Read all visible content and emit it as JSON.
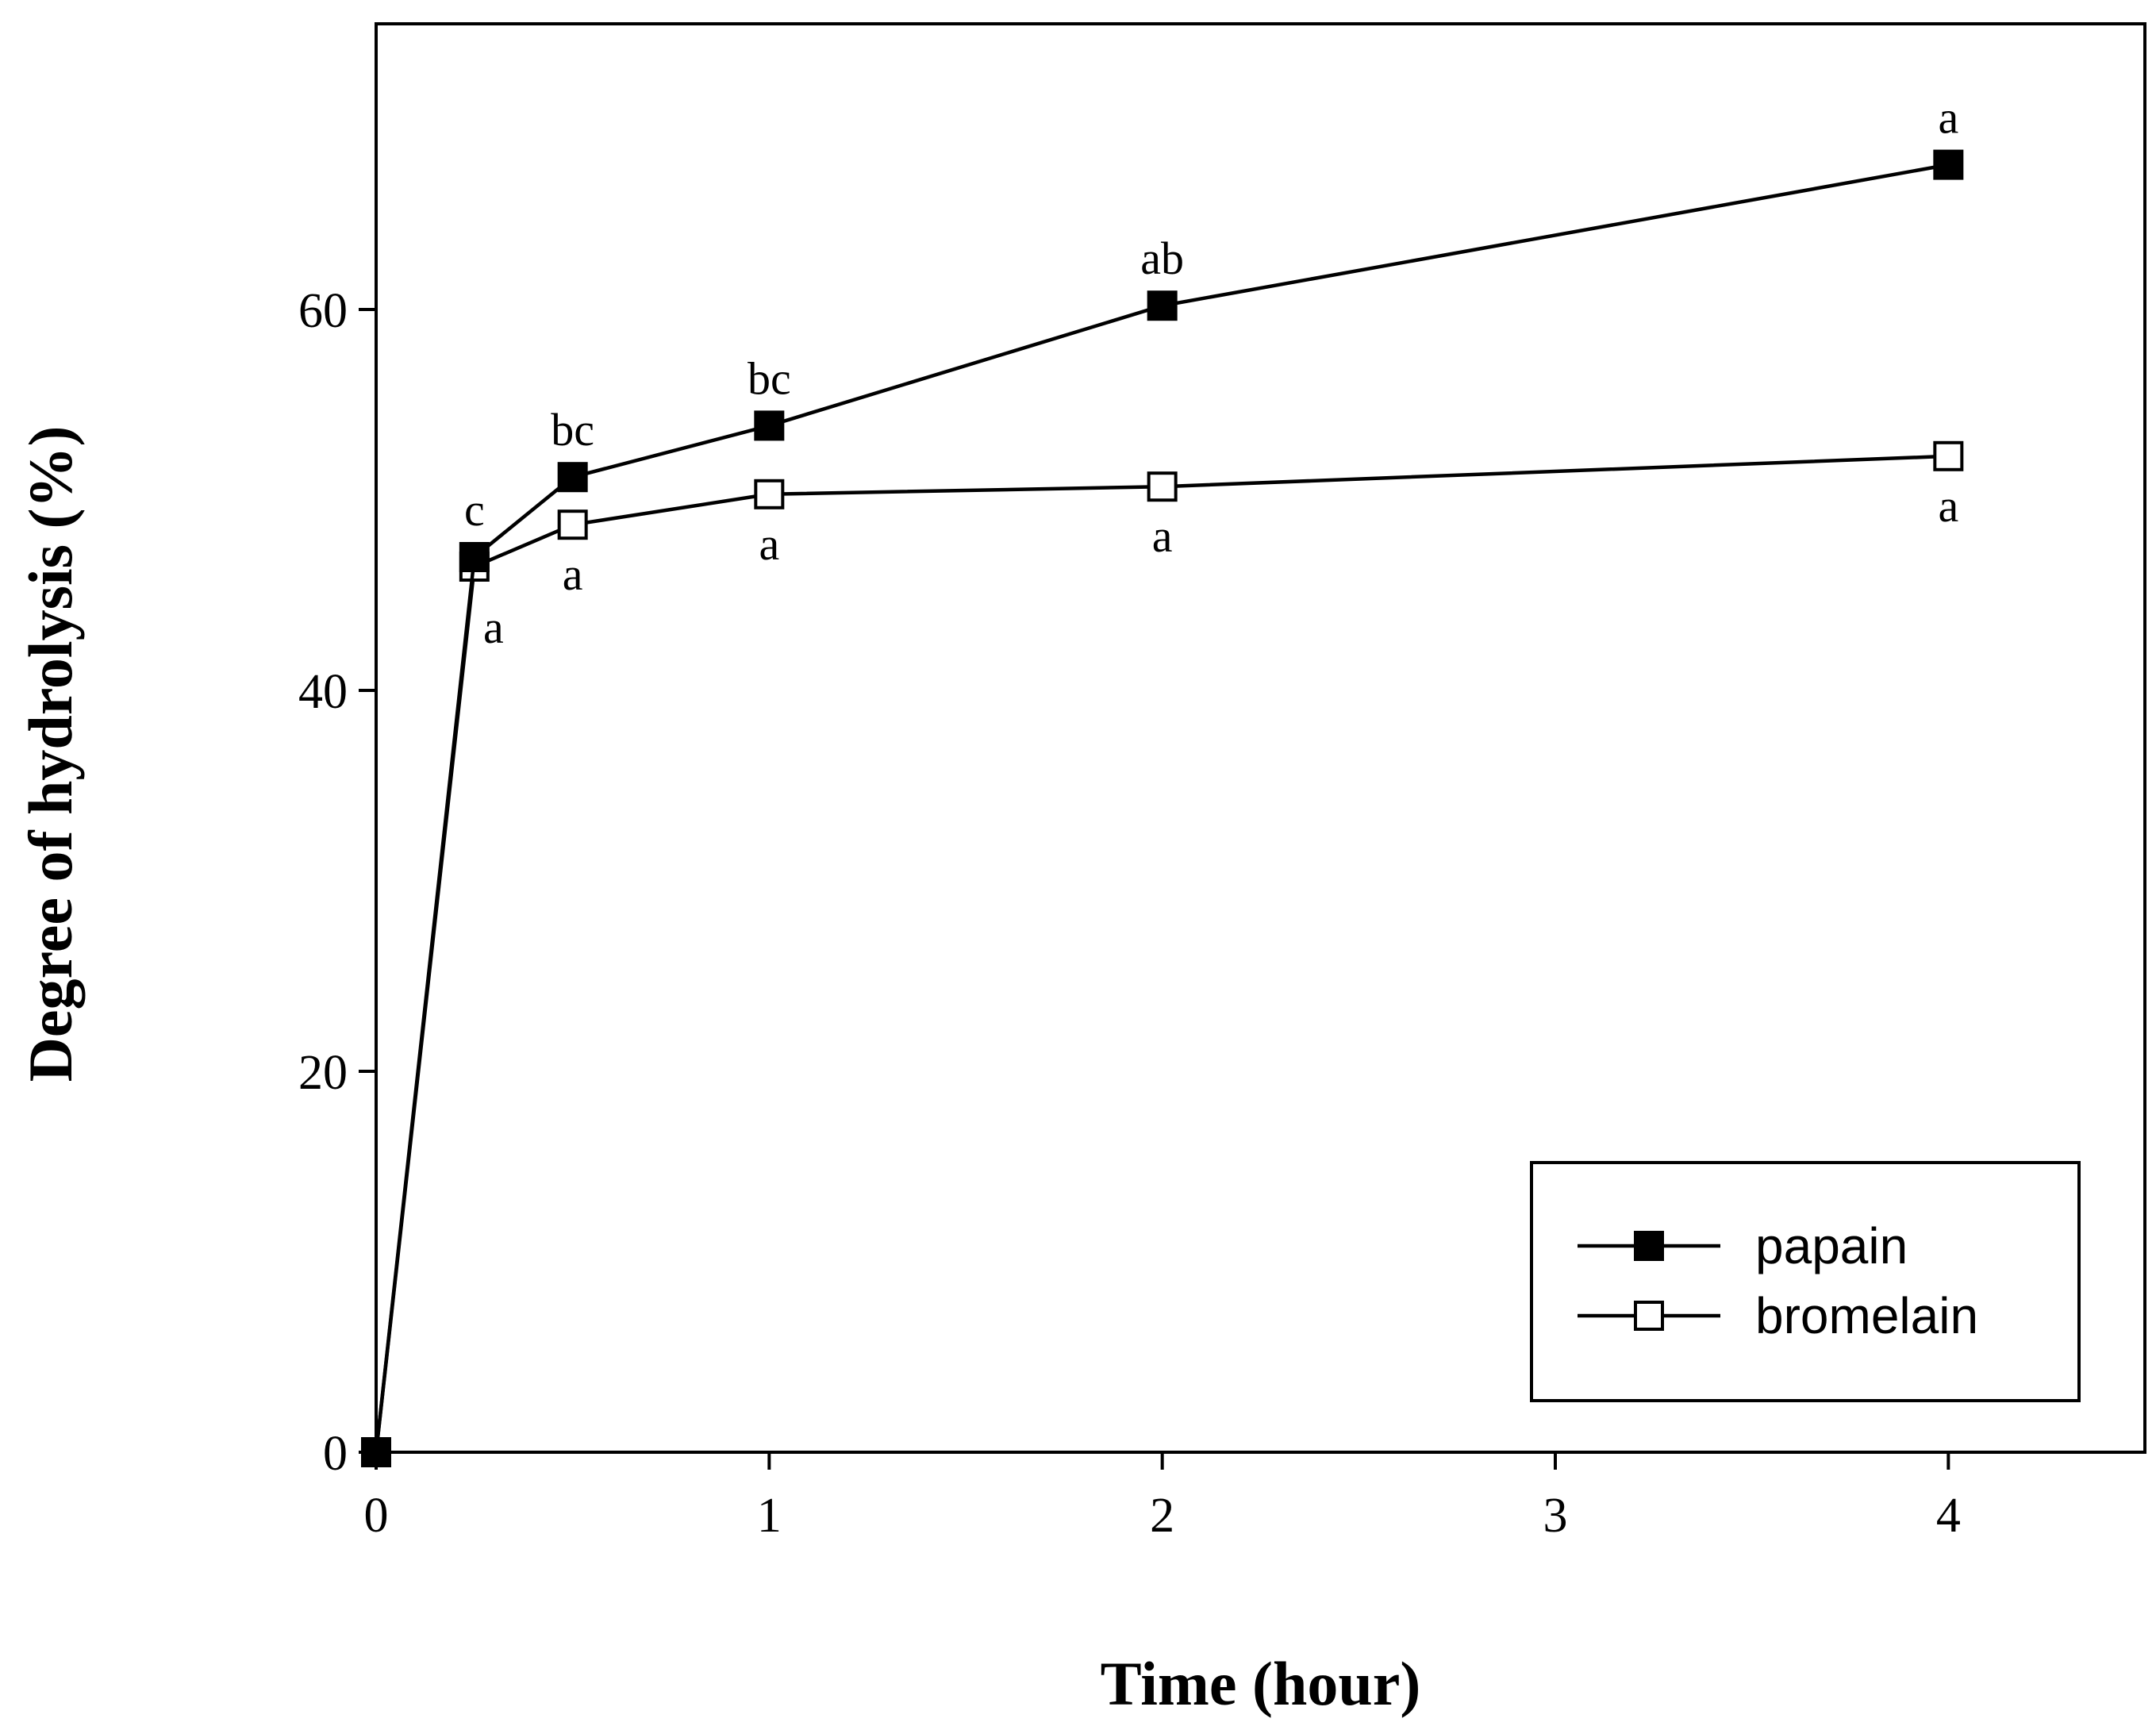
{
  "chart_data": {
    "type": "line",
    "title": "",
    "xlabel": "Time (hour)",
    "ylabel": "Degree of hydrolysis (%)",
    "xlim": [
      0,
      4.5
    ],
    "ylim": [
      0,
      75
    ],
    "xticks": [
      0,
      1,
      2,
      3,
      4
    ],
    "yticks": [
      0,
      20,
      40,
      60
    ],
    "grid": false,
    "legend_position": "bottom-right",
    "series": [
      {
        "name": "papain",
        "marker": "filled-square",
        "x": [
          0,
          0.25,
          0.5,
          1,
          2,
          4
        ],
        "values": [
          0,
          47.0,
          51.2,
          53.9,
          60.2,
          67.6
        ],
        "labels": [
          "",
          "c",
          "bc",
          "bc",
          "ab",
          "a"
        ]
      },
      {
        "name": "bromelain",
        "marker": "open-square",
        "x": [
          0,
          0.25,
          0.5,
          1,
          2,
          4
        ],
        "values": [
          0,
          46.5,
          48.7,
          50.3,
          50.7,
          52.3
        ],
        "labels": [
          "",
          "a",
          "a",
          "a",
          "a",
          "a"
        ]
      }
    ]
  },
  "colors": {
    "line": "#000000",
    "filled_marker": "#000000",
    "open_marker": "#ffffff",
    "background": "#ffffff"
  }
}
